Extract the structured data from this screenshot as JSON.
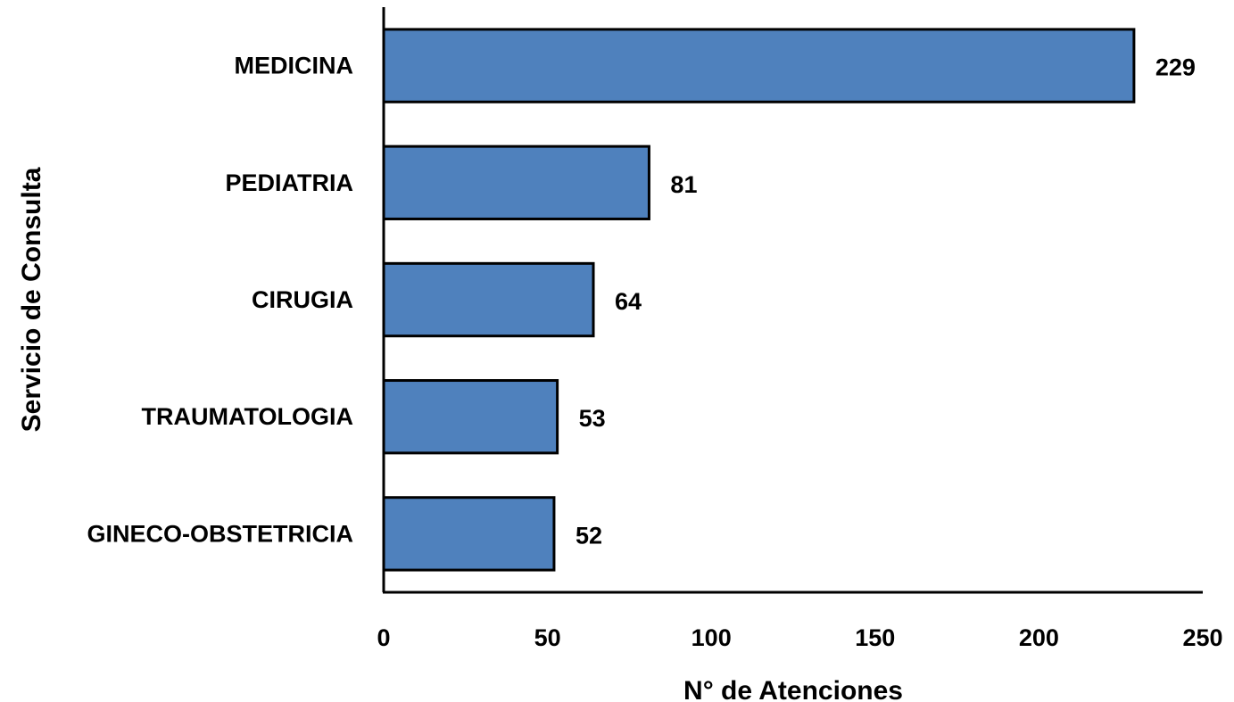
{
  "chart_data": {
    "type": "bar",
    "orientation": "horizontal",
    "categories": [
      "MEDICINA",
      "PEDIATRIA",
      "CIRUGIA",
      "TRAUMATOLOGIA",
      "GINECO-OBSTETRICIA"
    ],
    "values": [
      229,
      81,
      64,
      53,
      52
    ],
    "data_labels": [
      "229",
      "81",
      "64",
      "53",
      "52"
    ],
    "xlabel": "N° de Atenciones",
    "ylabel": "Servicio de Consulta",
    "xlim": [
      0,
      250
    ],
    "x_ticks": [
      0,
      50,
      100,
      150,
      200,
      250
    ],
    "x_tick_labels": [
      "0",
      "50",
      "100",
      "150",
      "200",
      "250"
    ],
    "grid": false,
    "legend": "none",
    "colors": {
      "bar_fill": "#4f81bd",
      "bar_stroke": "#000000",
      "axis": "#000000"
    }
  }
}
